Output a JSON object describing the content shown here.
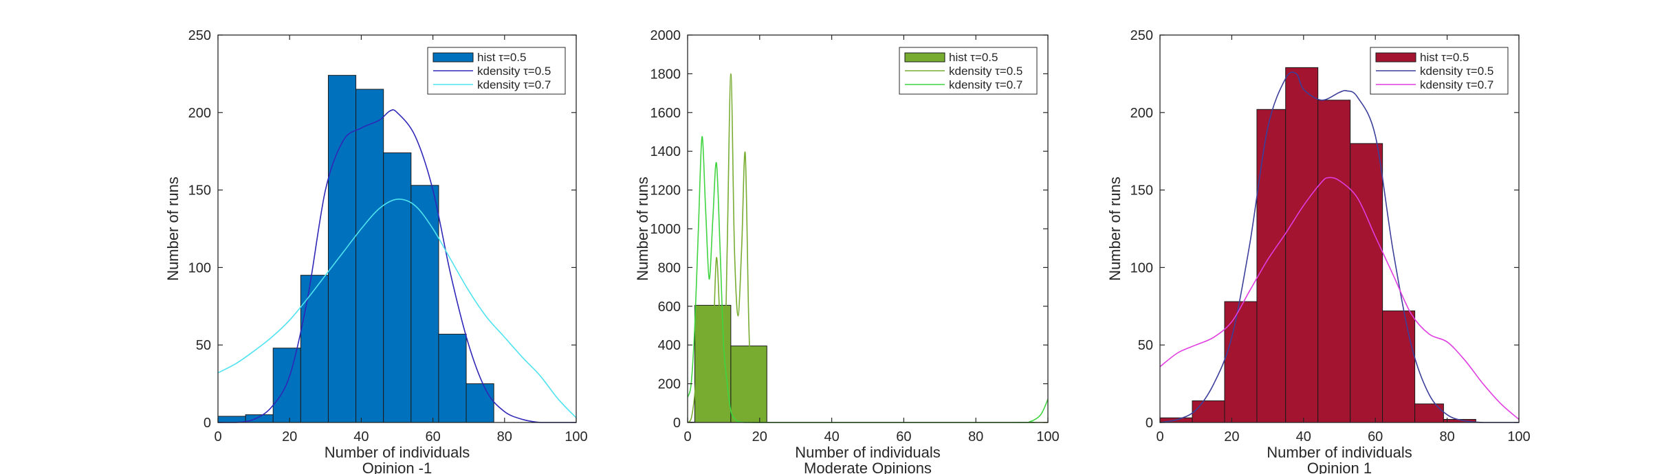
{
  "chart_data": [
    {
      "type": "bar",
      "panel": "opinion-neg1",
      "xlabel": "Number of individuals",
      "subtitle": "Opinion -1",
      "ylabel": "Number of runs",
      "xlim": [
        0,
        100
      ],
      "ylim": [
        0,
        250
      ],
      "xticks": [
        0,
        20,
        40,
        60,
        80,
        100
      ],
      "yticks": [
        0,
        50,
        100,
        150,
        200,
        250
      ],
      "grid": false,
      "legend_position": "top-right",
      "legend": [
        {
          "kind": "patch",
          "label": "hist τ=0.5",
          "color": "#0072bd"
        },
        {
          "kind": "line",
          "label": "kdensity τ=0.5",
          "color": "#2e27b8"
        },
        {
          "kind": "line",
          "label": "kdensity τ=0.7",
          "color": "#4fe3ef"
        }
      ],
      "histogram": {
        "name": "hist τ=0.5",
        "color": "#0072bd",
        "bin_edges": [
          0,
          7.7,
          15.4,
          23.1,
          30.8,
          38.5,
          46.2,
          53.9,
          61.6,
          69.3,
          77
        ],
        "counts": [
          4,
          5,
          48,
          95,
          224,
          215,
          174,
          153,
          57,
          25
        ]
      },
      "series": [
        {
          "name": "kdensity τ=0.5",
          "color": "#2e27b8",
          "x": [
            0,
            5,
            10,
            15,
            20,
            25,
            30,
            35,
            40,
            45,
            48,
            50,
            55,
            60,
            65,
            70,
            75,
            80,
            85,
            90,
            95,
            100
          ],
          "y": [
            0,
            0,
            2,
            10,
            30,
            80,
            150,
            182,
            190,
            195,
            201,
            200,
            185,
            150,
            95,
            50,
            20,
            7,
            2,
            0,
            0,
            0
          ]
        },
        {
          "name": "kdensity τ=0.7",
          "color": "#4fe3ef",
          "x": [
            0,
            5,
            10,
            15,
            20,
            25,
            30,
            35,
            40,
            45,
            50,
            55,
            60,
            65,
            70,
            75,
            80,
            85,
            90,
            95,
            100
          ],
          "y": [
            32,
            38,
            46,
            55,
            66,
            80,
            95,
            110,
            125,
            138,
            144,
            140,
            125,
            105,
            85,
            68,
            55,
            42,
            30,
            15,
            3
          ]
        }
      ]
    },
    {
      "type": "bar",
      "panel": "moderate",
      "xlabel": "Number of individuals",
      "subtitle": "Moderate Opinions",
      "ylabel": "Number of runs",
      "xlim": [
        0,
        100
      ],
      "ylim": [
        0,
        2000
      ],
      "xticks": [
        0,
        20,
        40,
        60,
        80,
        100
      ],
      "yticks": [
        0,
        200,
        400,
        600,
        800,
        1000,
        1200,
        1400,
        1600,
        1800,
        2000
      ],
      "grid": false,
      "legend_position": "top-right",
      "legend": [
        {
          "kind": "patch",
          "label": "hist τ=0.5",
          "color": "#77ac30"
        },
        {
          "kind": "line",
          "label": "kdensity τ=0.5",
          "color": "#77ac30"
        },
        {
          "kind": "line",
          "label": "kdensity τ=0.7",
          "color": "#3fd43f"
        }
      ],
      "histogram": {
        "name": "hist τ=0.5",
        "color": "#77ac30",
        "bin_edges": [
          0,
          2,
          12,
          22,
          32,
          42,
          52,
          62,
          72,
          82,
          92,
          100
        ],
        "counts": [
          2,
          605,
          395,
          0,
          0,
          0,
          0,
          0,
          0,
          0,
          0
        ]
      },
      "series": [
        {
          "name": "kdensity τ=0.5",
          "color": "#77ac30",
          "x": [
            0,
            1,
            2,
            3,
            4,
            5,
            6,
            7,
            8,
            9,
            10,
            11,
            12,
            13,
            14,
            15,
            16,
            17,
            18,
            20,
            25,
            100
          ],
          "y": [
            0,
            20,
            150,
            400,
            560,
            300,
            100,
            350,
            850,
            500,
            120,
            900,
            1800,
            900,
            550,
            900,
            1390,
            500,
            80,
            0,
            0,
            0
          ]
        },
        {
          "name": "kdensity τ=0.7",
          "color": "#3fd43f",
          "x": [
            0,
            1,
            2,
            3,
            4,
            5,
            6,
            7,
            8,
            9,
            10,
            11,
            12,
            13,
            14,
            15,
            16,
            17,
            18,
            20,
            25,
            90,
            95,
            98,
            100
          ],
          "y": [
            130,
            200,
            500,
            1000,
            1475,
            1100,
            740,
            1050,
            1340,
            900,
            400,
            200,
            60,
            20,
            5,
            2,
            0,
            0,
            0,
            0,
            0,
            0,
            5,
            40,
            120
          ]
        }
      ]
    },
    {
      "type": "bar",
      "panel": "opinion-pos1",
      "xlabel": "Number of individuals",
      "subtitle": "Opinion 1",
      "ylabel": "Number of runs",
      "xlim": [
        0,
        100
      ],
      "ylim": [
        0,
        250
      ],
      "xticks": [
        0,
        20,
        40,
        60,
        80,
        100
      ],
      "yticks": [
        0,
        50,
        100,
        150,
        200,
        250
      ],
      "grid": false,
      "legend_position": "top-right",
      "legend": [
        {
          "kind": "patch",
          "label": "hist τ=0.5",
          "color": "#a2142f"
        },
        {
          "kind": "line",
          "label": "kdensity τ=0.5",
          "color": "#3b3f9a"
        },
        {
          "kind": "line",
          "label": "kdensity τ=0.7",
          "color": "#e03ce0"
        }
      ],
      "histogram": {
        "name": "hist τ=0.5",
        "color": "#a2142f",
        "bin_edges": [
          0,
          9,
          18,
          27,
          35,
          44,
          53,
          62,
          71,
          79,
          88
        ],
        "counts": [
          3,
          14,
          78,
          202,
          229,
          208,
          180,
          72,
          12,
          2
        ]
      },
      "series": [
        {
          "name": "kdensity τ=0.5",
          "color": "#3b3f9a",
          "x": [
            0,
            5,
            10,
            15,
            20,
            25,
            30,
            35,
            38,
            40,
            45,
            50,
            52,
            55,
            60,
            65,
            70,
            75,
            80,
            85,
            90,
            95,
            100
          ],
          "y": [
            0,
            2,
            8,
            25,
            55,
            115,
            190,
            222,
            225,
            215,
            208,
            213,
            214,
            210,
            185,
            110,
            50,
            18,
            5,
            1,
            0,
            0,
            0
          ]
        },
        {
          "name": "kdensity τ=0.7",
          "color": "#e03ce0",
          "x": [
            0,
            5,
            10,
            15,
            20,
            25,
            30,
            35,
            40,
            45,
            47,
            50,
            55,
            60,
            65,
            70,
            75,
            80,
            85,
            90,
            95,
            100
          ],
          "y": [
            36,
            45,
            50,
            55,
            65,
            85,
            105,
            122,
            140,
            155,
            158,
            156,
            145,
            120,
            95,
            70,
            57,
            52,
            40,
            25,
            12,
            2
          ]
        }
      ]
    }
  ]
}
